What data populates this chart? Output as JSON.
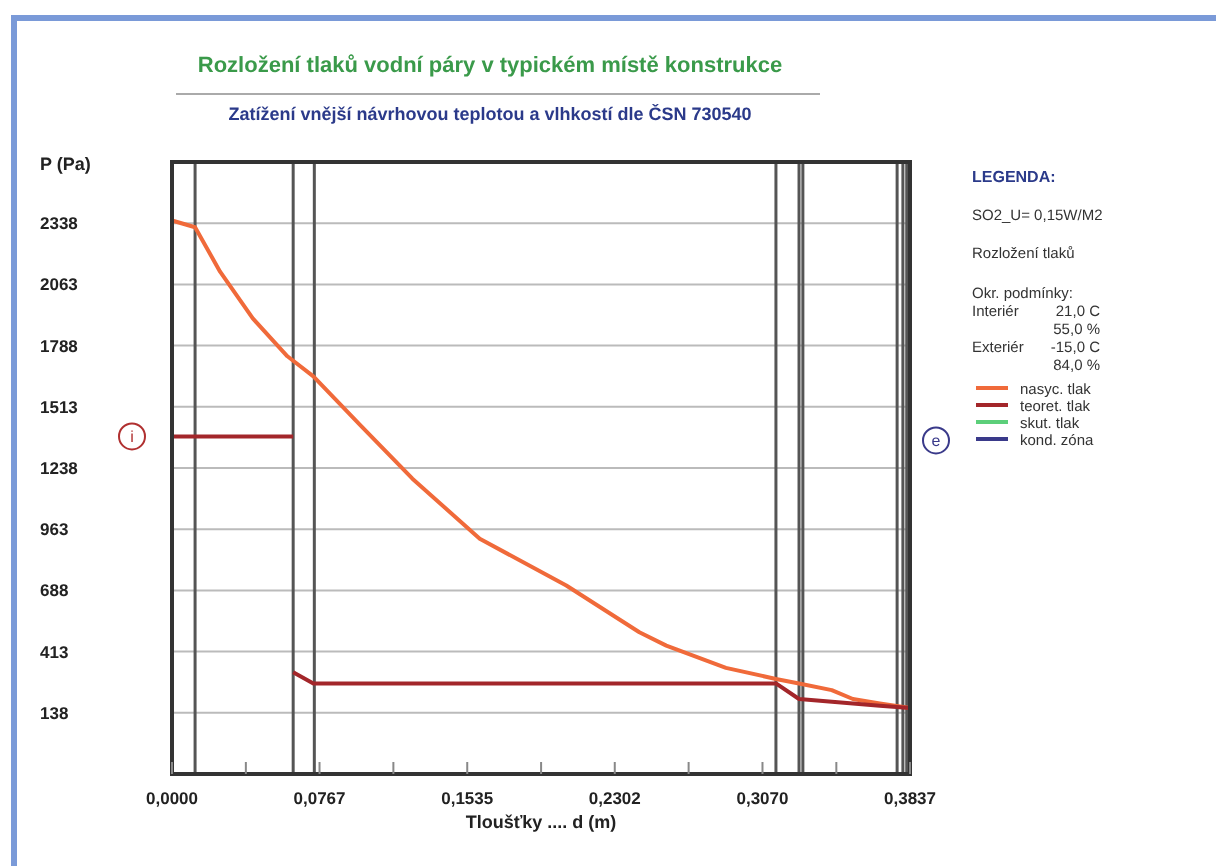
{
  "chart_data": {
    "type": "line",
    "title": "Rozložení tlaků vodní páry v typickém místě konstrukce",
    "subtitle": "Zatížení vnější návrhovou teplotou a vlhkostí dle ČSN 730540",
    "xlabel": "Tloušťky .... d (m)",
    "ylabel": "P (Pa)",
    "legend_title": "LEGENDA:",
    "annotations": [
      "i",
      "e",
      "SO2_U= 0,15W/M2",
      "Rozložení tlaků",
      "Okr. podmínky:",
      "Interiér",
      "21,0 C",
      "55,0 %",
      "Exteriér",
      "-15,0 C",
      "84,0 %"
    ],
    "xlim": [
      0,
      0.3837
    ],
    "ylim": [
      -137,
      2613
    ],
    "xticks": [
      {
        "value": 0,
        "label": "0,0000"
      },
      {
        "value": 0.0384,
        "label": null
      },
      {
        "value": 0.0767,
        "label": "0,0767"
      },
      {
        "value": 0.1151,
        "label": null
      },
      {
        "value": 0.1535,
        "label": "0,1535"
      },
      {
        "value": 0.1919,
        "label": null
      },
      {
        "value": 0.2302,
        "label": "0,2302"
      },
      {
        "value": 0.2686,
        "label": null
      },
      {
        "value": 0.307,
        "label": "0,3070"
      },
      {
        "value": 0.3454,
        "label": null
      },
      {
        "value": 0.3837,
        "label": "0,3837"
      }
    ],
    "yticks": [
      138,
      413,
      688,
      963,
      1238,
      1513,
      1788,
      2063,
      2338
    ],
    "grid": "y",
    "legend": "top right",
    "ref_lines": [
      {
        "axis": "x",
        "value": 0.012,
        "color": "#555555"
      },
      {
        "axis": "x",
        "value": 0.063,
        "color": "#555555"
      },
      {
        "axis": "x",
        "value": 0.074,
        "color": "#555555"
      },
      {
        "axis": "x",
        "value": 0.314,
        "color": "#555555"
      },
      {
        "axis": "x",
        "value": 0.326,
        "color": "#555555"
      },
      {
        "axis": "x",
        "value": 0.328,
        "color": "#555555"
      },
      {
        "axis": "x",
        "value": 0.377,
        "color": "#555555"
      },
      {
        "axis": "x",
        "value": 0.38,
        "color": "#555555"
      },
      {
        "axis": "x",
        "value": 0.382,
        "color": "#555555"
      }
    ],
    "series": [
      {
        "name": "nasyc. tlak",
        "color": "#f06a3a",
        "x": [
          0,
          0.012,
          0.025,
          0.042,
          0.06,
          0.0735,
          0.098,
          0.125,
          0.16,
          0.205,
          0.243,
          0.257,
          0.288,
          0.314,
          0.326,
          0.343,
          0.354,
          0.368,
          0.3837
        ],
        "values": [
          2350,
          2320,
          2120,
          1910,
          1740,
          1650,
          1430,
          1190,
          920,
          710,
          500,
          440,
          340,
          290,
          270,
          240,
          200,
          180,
          160
        ]
      },
      {
        "name": "teoret. tlak",
        "color": "#a3262a",
        "x": [
          0.063,
          0.0735,
          0.314,
          0.326,
          0.368,
          0.3837
        ],
        "values": [
          320,
          270,
          270,
          200,
          170,
          160
        ]
      },
      {
        "color": "#a3262a",
        "x": [
          0,
          0.063
        ],
        "values": [
          1380,
          1380
        ]
      },
      {
        "name": "skut. tlak",
        "color": "#5ccf7a"
      },
      {
        "name": "kond. zóna",
        "color": "#3a3a8a"
      }
    ]
  }
}
